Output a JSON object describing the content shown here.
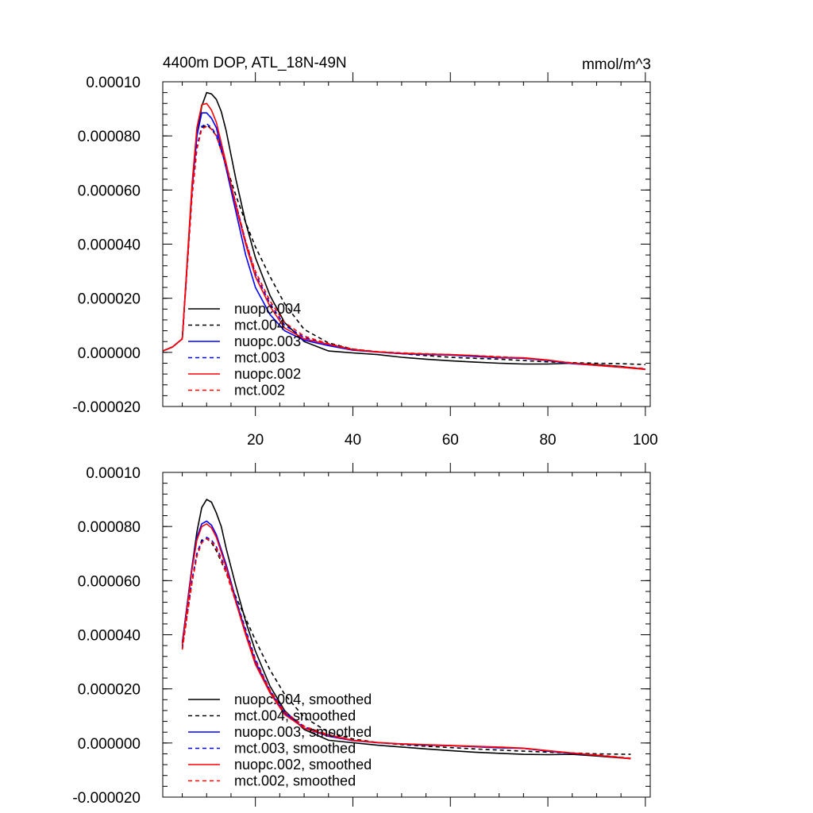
{
  "chart_data": [
    {
      "type": "line",
      "title_left": "4400m DOP, ATL_18N-49N",
      "title_right": "mmol/m^3",
      "xlim": [
        1,
        101
      ],
      "ylim": [
        -2e-05,
        0.0001
      ],
      "xticks": [
        20,
        40,
        60,
        80,
        100
      ],
      "xtick_labels": [
        "20",
        "40",
        "60",
        "80",
        "100"
      ],
      "yticks": [
        0.0001,
        8e-05,
        6e-05,
        4e-05,
        2e-05,
        0,
        -2e-05
      ],
      "ytick_labels": [
        "0.00010",
        "0.000080",
        "0.000060",
        "0.000040",
        "0.000020",
        "0.000000",
        "-0.000020"
      ],
      "legend_position": "lower-left",
      "series": [
        {
          "name": "nuopc.004",
          "color": "#000000",
          "dash": "solid",
          "x": [
            1,
            3,
            5,
            7,
            8,
            9,
            10,
            11,
            12,
            13,
            14,
            16,
            18,
            20,
            23,
            26,
            30,
            35,
            40,
            45,
            50,
            55,
            60,
            65,
            70,
            75,
            80,
            85,
            90,
            95,
            100
          ],
          "y": [
            5e-07,
            2e-06,
            5e-06,
            6e-05,
            8e-05,
            9.1e-05,
            9.6e-05,
            9.55e-05,
            9.35e-05,
            8.9e-05,
            8.2e-05,
            6.4e-05,
            4.8e-05,
            3.5e-05,
            2.1e-05,
            1.1e-05,
            4e-06,
            5e-07,
            -2e-07,
            -8e-07,
            -1.8e-06,
            -2.5e-06,
            -3.1e-06,
            -3.6e-06,
            -4e-06,
            -4.3e-06,
            -4.3e-06,
            -4e-06,
            -4.5e-06,
            -5.2e-06,
            -6.3e-06
          ]
        },
        {
          "name": "mct.004",
          "color": "#000000",
          "dash": "dash",
          "x": [
            1,
            3,
            5,
            7,
            8,
            9,
            10,
            11,
            12,
            14,
            16,
            18,
            20,
            23,
            26,
            30,
            35,
            40,
            45,
            50,
            55,
            60,
            65,
            70,
            75,
            80,
            85,
            90,
            95,
            100
          ],
          "y": [
            5e-07,
            2e-06,
            5e-06,
            5.8e-05,
            7.6e-05,
            8.3e-05,
            8.4e-05,
            8.25e-05,
            8e-05,
            6.9e-05,
            5.8e-05,
            4.8e-05,
            3.9e-05,
            2.8e-05,
            1.8e-05,
            8.5e-06,
            3.5e-06,
            1.2e-06,
            2e-07,
            -5e-07,
            -1.2e-06,
            -1.8e-06,
            -2.2e-06,
            -2.5e-06,
            -3e-06,
            -3.5e-06,
            -3.8e-06,
            -4e-06,
            -4.2e-06,
            -4.5e-06
          ]
        },
        {
          "name": "nuopc.003",
          "color": "#0000ff",
          "dash": "solid",
          "x": [
            1,
            3,
            5,
            7,
            8,
            9,
            10,
            11,
            12,
            14,
            16,
            18,
            20,
            23,
            26,
            30,
            35,
            40,
            45,
            50,
            55,
            60,
            65,
            70,
            75,
            80,
            85,
            90,
            95,
            100
          ],
          "y": [
            5e-07,
            2e-06,
            5e-06,
            6e-05,
            8e-05,
            8.85e-05,
            8.85e-05,
            8.65e-05,
            8.3e-05,
            6.8e-05,
            5.2e-05,
            3.6e-05,
            2.4e-05,
            1.4e-05,
            8e-06,
            4.5e-06,
            2.5e-06,
            8e-07,
            1e-07,
            -5e-07,
            -8e-07,
            -1e-06,
            -1.5e-06,
            -2e-06,
            -2.2e-06,
            -3e-06,
            -4.2e-06,
            -4.8e-06,
            -5.5e-06,
            -6.2e-06
          ]
        },
        {
          "name": "mct.003",
          "color": "#0000ff",
          "dash": "dash",
          "x": [
            1,
            3,
            5,
            7,
            8,
            9,
            10,
            11,
            12,
            14,
            16,
            18,
            20,
            23,
            26,
            30,
            35,
            40,
            45,
            50,
            55,
            60,
            65,
            70,
            75,
            80,
            85,
            90,
            95,
            100
          ],
          "y": [
            5e-07,
            2e-06,
            5e-06,
            5.8e-05,
            7.6e-05,
            8.35e-05,
            8.45e-05,
            8.3e-05,
            8.05e-05,
            6.9e-05,
            5.5e-05,
            4.1e-05,
            2.9e-05,
            1.8e-05,
            1e-05,
            5.5e-06,
            3e-06,
            1e-06,
            2e-07,
            -3e-07,
            -6e-07,
            -9e-07,
            -1.3e-06,
            -1.7e-06,
            -2.2e-06,
            -3e-06,
            -4e-06,
            -4.7e-06,
            -5.4e-06,
            -6.1e-06
          ]
        },
        {
          "name": "nuopc.002",
          "color": "#ff0000",
          "dash": "solid",
          "x": [
            1,
            3,
            5,
            7,
            8,
            9,
            10,
            11,
            12,
            14,
            16,
            18,
            20,
            23,
            26,
            30,
            35,
            40,
            45,
            50,
            55,
            60,
            65,
            70,
            75,
            80,
            85,
            90,
            95,
            100
          ],
          "y": [
            5e-07,
            2e-06,
            5e-06,
            6.2e-05,
            8.3e-05,
            9.15e-05,
            9.2e-05,
            8.95e-05,
            8.5e-05,
            7e-05,
            5.4e-05,
            4e-05,
            2.8e-05,
            1.7e-05,
            9e-06,
            5e-06,
            3e-06,
            1e-06,
            2e-07,
            -3e-07,
            -6e-07,
            -8e-07,
            -1.2e-06,
            -1.8e-06,
            -2e-06,
            -2.8e-06,
            -4e-06,
            -4.8e-06,
            -5.5e-06,
            -6.3e-06
          ]
        },
        {
          "name": "mct.002",
          "color": "#ff0000",
          "dash": "dash",
          "x": [
            1,
            3,
            5,
            7,
            8,
            9,
            10,
            11,
            12,
            14,
            16,
            18,
            20,
            23,
            26,
            30,
            35,
            40,
            45,
            50,
            55,
            60,
            65,
            70,
            75,
            80,
            85,
            90,
            95,
            100
          ],
          "y": [
            5e-07,
            2e-06,
            5e-06,
            5.7e-05,
            7.5e-05,
            8.25e-05,
            8.35e-05,
            8.25e-05,
            8e-05,
            6.9e-05,
            5.5e-05,
            4.1e-05,
            3e-05,
            1.9e-05,
            1.1e-05,
            6e-06,
            3.2e-06,
            1.2e-06,
            3e-07,
            -2e-07,
            -5e-07,
            -8e-07,
            -1.2e-06,
            -1.6e-06,
            -2.1e-06,
            -2.9e-06,
            -3.9e-06,
            -4.6e-06,
            -5.3e-06,
            -6e-06
          ]
        }
      ]
    },
    {
      "type": "line",
      "xlim": [
        1,
        101
      ],
      "ylim": [
        -2e-05,
        0.0001
      ],
      "xticks": [
        20,
        40,
        60,
        80,
        100
      ],
      "xtick_labels": [],
      "yticks": [
        0.0001,
        8e-05,
        6e-05,
        4e-05,
        2e-05,
        0,
        -2e-05
      ],
      "ytick_labels": [
        "0.00010",
        "0.000080",
        "0.000060",
        "0.000040",
        "0.000020",
        "0.000000",
        "-0.000020"
      ],
      "legend_position": "lower-left",
      "series": [
        {
          "name": "nuopc.004, smoothed",
          "color": "#000000",
          "dash": "solid",
          "x": [
            5,
            7,
            8,
            9,
            10,
            11,
            12,
            13,
            14,
            16,
            18,
            20,
            23,
            26,
            30,
            35,
            40,
            45,
            50,
            55,
            60,
            65,
            70,
            75,
            80,
            85,
            90,
            97
          ],
          "y": [
            3.7e-05,
            6.5e-05,
            7.8e-05,
            8.7e-05,
            9e-05,
            8.9e-05,
            8.5e-05,
            8e-05,
            7.2e-05,
            5.8e-05,
            4.5e-05,
            3.4e-05,
            2.1e-05,
            1.2e-05,
            5e-06,
            1e-06,
            1e-07,
            -8e-07,
            -1.5e-06,
            -2.2e-06,
            -2.8e-06,
            -3.4e-06,
            -3.8e-06,
            -4.2e-06,
            -4.3e-06,
            -4.2e-06,
            -4.8e-06,
            -5.8e-06
          ]
        },
        {
          "name": "mct.004, smoothed",
          "color": "#000000",
          "dash": "dash",
          "x": [
            5,
            7,
            8,
            9,
            10,
            11,
            12,
            14,
            16,
            18,
            20,
            23,
            26,
            30,
            35,
            40,
            45,
            50,
            55,
            60,
            65,
            70,
            75,
            80,
            85,
            90,
            97
          ],
          "y": [
            3.5e-05,
            6e-05,
            7e-05,
            7.5e-05,
            7.55e-05,
            7.4e-05,
            7.1e-05,
            6.3e-05,
            5.4e-05,
            4.6e-05,
            3.8e-05,
            2.7e-05,
            1.8e-05,
            9.5e-06,
            4e-06,
            1.5e-06,
            2e-07,
            -6e-07,
            -1.2e-06,
            -1.7e-06,
            -2.2e-06,
            -2.6e-06,
            -3e-06,
            -3.4e-06,
            -3.7e-06,
            -4e-06,
            -4.2e-06
          ]
        },
        {
          "name": "nuopc.003, smoothed",
          "color": "#0000ff",
          "dash": "solid",
          "x": [
            5,
            7,
            8,
            9,
            10,
            11,
            12,
            14,
            16,
            18,
            20,
            23,
            26,
            30,
            35,
            40,
            45,
            50,
            55,
            60,
            65,
            70,
            75,
            80,
            85,
            90,
            97
          ],
          "y": [
            3.7e-05,
            6.5e-05,
            7.6e-05,
            8.1e-05,
            8.2e-05,
            8.05e-05,
            7.7e-05,
            6.6e-05,
            5.3e-05,
            4.1e-05,
            3e-05,
            1.9e-05,
            1.1e-05,
            5.5e-06,
            2.5e-06,
            9e-07,
            1e-07,
            -4e-07,
            -8e-07,
            -1e-06,
            -1.4e-06,
            -1.8e-06,
            -2e-06,
            -3e-06,
            -3.8e-06,
            -4.5e-06,
            -5.8e-06
          ]
        },
        {
          "name": "mct.003, smoothed",
          "color": "#0000ff",
          "dash": "dash",
          "x": [
            5,
            7,
            8,
            9,
            10,
            11,
            12,
            14,
            16,
            18,
            20,
            23,
            26,
            30,
            35,
            40,
            45,
            50,
            55,
            60,
            65,
            70,
            75,
            80,
            85,
            90,
            97
          ],
          "y": [
            3.5e-05,
            6e-05,
            7e-05,
            7.45e-05,
            7.6e-05,
            7.5e-05,
            7.25e-05,
            6.4e-05,
            5.3e-05,
            4.2e-05,
            3.1e-05,
            1.95e-05,
            1.15e-05,
            6e-06,
            3e-06,
            1e-06,
            2e-07,
            -3e-07,
            -7e-07,
            -1e-06,
            -1.3e-06,
            -1.6e-06,
            -2e-06,
            -3e-06,
            -3.8e-06,
            -4.5e-06,
            -5.7e-06
          ]
        },
        {
          "name": "nuopc.002, smoothed",
          "color": "#ff0000",
          "dash": "solid",
          "x": [
            5,
            7,
            8,
            9,
            10,
            11,
            12,
            14,
            16,
            18,
            20,
            23,
            26,
            30,
            35,
            40,
            45,
            50,
            55,
            60,
            65,
            70,
            75,
            80,
            85,
            90,
            97
          ],
          "y": [
            3.6e-05,
            6.4e-05,
            7.5e-05,
            8e-05,
            8.1e-05,
            7.95e-05,
            7.6e-05,
            6.5e-05,
            5.2e-05,
            4e-05,
            2.9e-05,
            1.85e-05,
            1.05e-05,
            5.5e-06,
            2.8e-06,
            1e-06,
            2e-07,
            -3e-07,
            -6e-07,
            -9e-07,
            -1.2e-06,
            -1.5e-06,
            -1.9e-06,
            -2.8e-06,
            -3.7e-06,
            -4.5e-06,
            -5.8e-06
          ]
        },
        {
          "name": "mct.002, smoothed",
          "color": "#ff0000",
          "dash": "dash",
          "x": [
            5,
            7,
            8,
            9,
            10,
            11,
            12,
            14,
            16,
            18,
            20,
            23,
            26,
            30,
            35,
            40,
            45,
            50,
            55,
            60,
            65,
            70,
            75,
            80,
            85,
            90,
            97
          ],
          "y": [
            3.45e-05,
            5.9e-05,
            6.9e-05,
            7.4e-05,
            7.55e-05,
            7.45e-05,
            7.2e-05,
            6.3e-05,
            5.2e-05,
            4.1e-05,
            3.05e-05,
            1.95e-05,
            1.15e-05,
            6.2e-06,
            3.1e-06,
            1.1e-06,
            2e-07,
            -3e-07,
            -7e-07,
            -1e-06,
            -1.3e-06,
            -1.6e-06,
            -2e-06,
            -2.9e-06,
            -3.7e-06,
            -4.4e-06,
            -5.6e-06
          ]
        }
      ]
    }
  ]
}
